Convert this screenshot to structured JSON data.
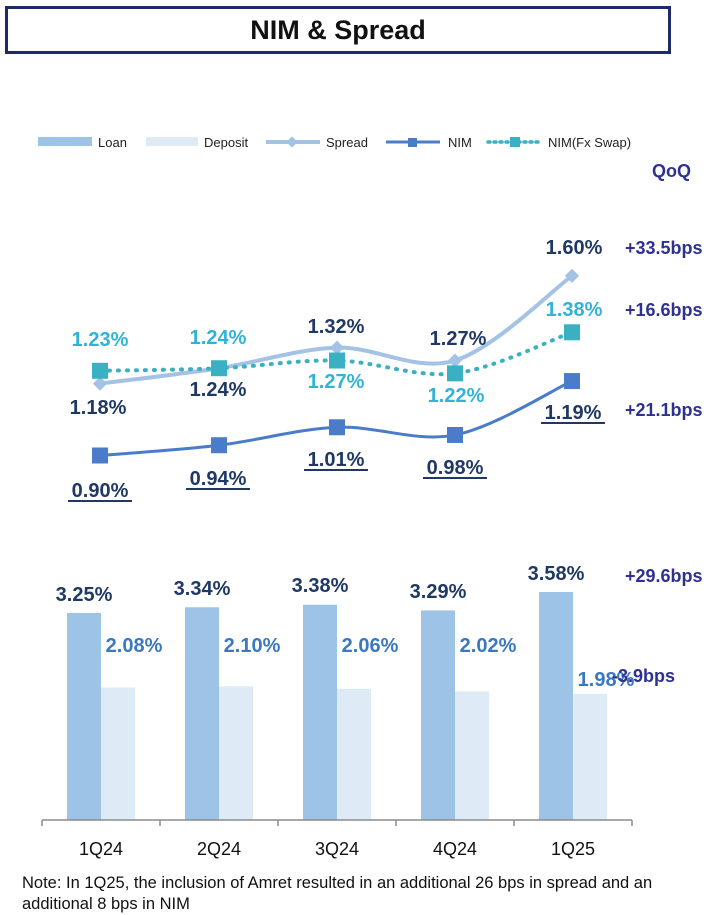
{
  "title": "NIM & Spread",
  "qoq_label": "QoQ",
  "note": "Note: In 1Q25, the inclusion of Amret resulted in an additional 26 bps in spread and an additional 8 bps in NIM",
  "colors": {
    "loan": "#9dc3e6",
    "deposit": "#deebf7",
    "spread": "#a4c2e6",
    "nim": "#4a7cc9",
    "nim_fx": "#3ab0c3",
    "navy": "#1f3864",
    "qoq": "#2e3192",
    "fx_label": "#2fb4d8"
  },
  "chart_data": [
    {
      "type": "line",
      "title": "",
      "categories": [
        "1Q24",
        "2Q24",
        "3Q24",
        "4Q24",
        "1Q25"
      ],
      "legend": [
        "Loan",
        "Deposit",
        "Spread",
        "NIM",
        "NIM(Fx Swap)"
      ],
      "series": [
        {
          "name": "Spread",
          "values": [
            1.18,
            1.24,
            1.32,
            1.27,
            1.6
          ],
          "labels": [
            "1.18%",
            "1.24%",
            "1.32%",
            "1.27%",
            "1.60%"
          ],
          "qoq": "+33.5bps"
        },
        {
          "name": "NIM(Fx Swap)",
          "values": [
            1.23,
            1.24,
            1.27,
            1.22,
            1.38
          ],
          "labels": [
            "1.23%",
            "1.24%",
            "1.27%",
            "1.22%",
            "1.38%"
          ],
          "qoq": "+16.6bps"
        },
        {
          "name": "NIM",
          "values": [
            0.9,
            0.94,
            1.01,
            0.98,
            1.19
          ],
          "labels": [
            "0.90%",
            "0.94%",
            "1.01%",
            "0.98%",
            "1.19%"
          ],
          "qoq": "+21.1bps"
        }
      ]
    },
    {
      "type": "bar",
      "title": "",
      "categories": [
        "1Q24",
        "2Q24",
        "3Q24",
        "4Q24",
        "1Q25"
      ],
      "series": [
        {
          "name": "Loan",
          "values": [
            3.25,
            3.34,
            3.38,
            3.29,
            3.58
          ],
          "labels": [
            "3.25%",
            "3.34%",
            "3.38%",
            "3.29%",
            "3.58%"
          ],
          "qoq": "+29.6bps"
        },
        {
          "name": "Deposit",
          "values": [
            2.08,
            2.1,
            2.06,
            2.02,
            1.98
          ],
          "labels": [
            "2.08%",
            "2.10%",
            "2.06%",
            "2.02%",
            "1.98%"
          ],
          "qoq": "-3.9bps"
        }
      ]
    }
  ]
}
